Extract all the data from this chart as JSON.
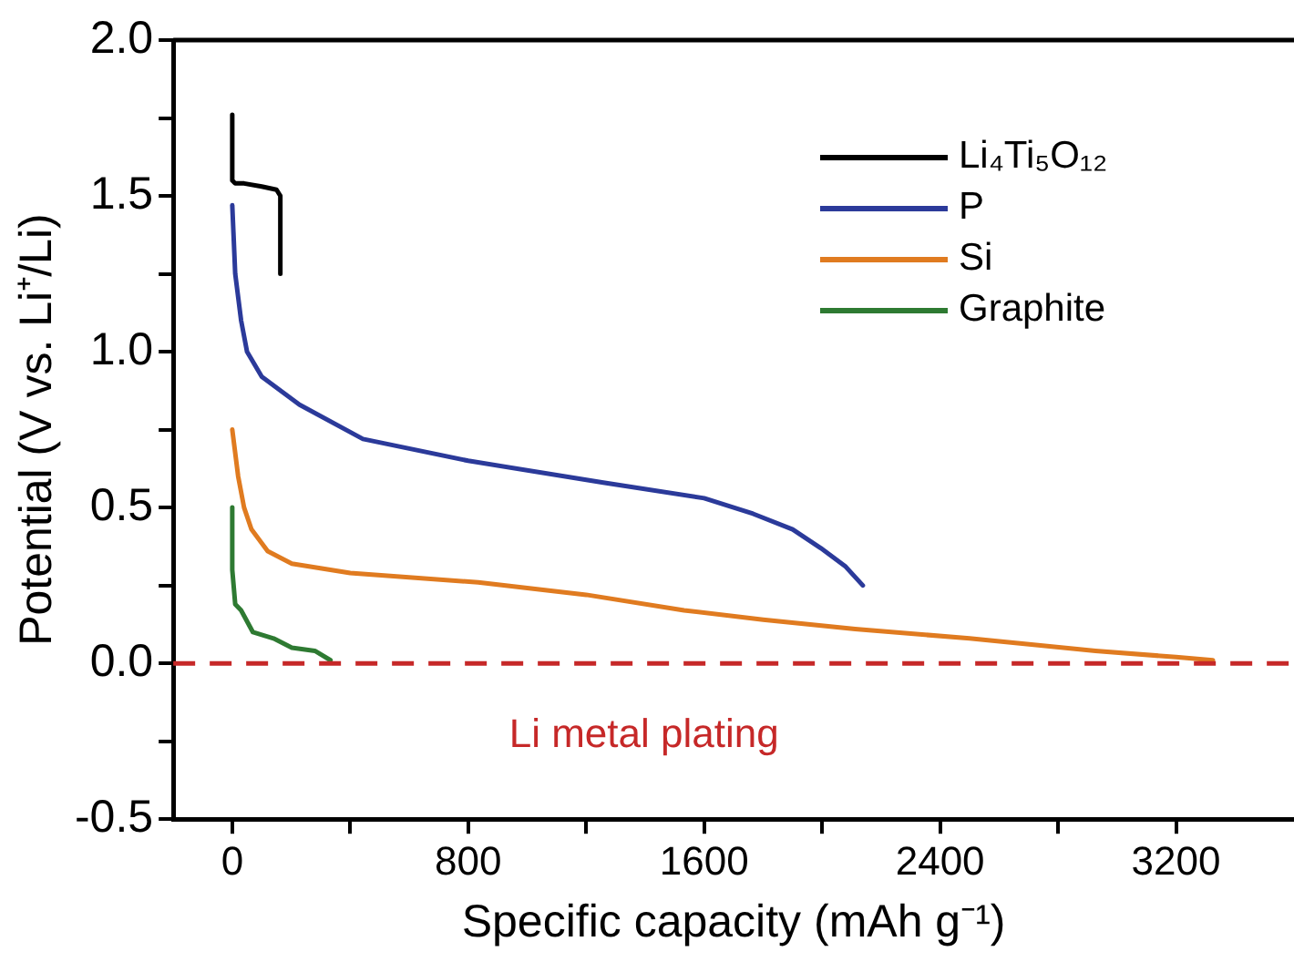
{
  "chart_data": {
    "type": "line",
    "xlabel": "Specific capacity (mAh g⁻¹)",
    "ylabel": "Potential (V vs. Li⁺/Li)",
    "xlim": [
      -200,
      3600
    ],
    "xticks": [
      0,
      {
        "value": 400,
        "label": null
      },
      800,
      {
        "value": 1200,
        "label": null
      },
      1600,
      {
        "value": 2000,
        "label": null
      },
      2400,
      {
        "value": 2800,
        "label": null
      },
      3200
    ],
    "ylim": [
      -0.5,
      2.0
    ],
    "yticks": [
      -0.5,
      {
        "value": -0.25,
        "label": null
      },
      {
        "value": 0,
        "label": "0.0"
      },
      {
        "value": 0.25,
        "label": null
      },
      0.5,
      {
        "value": 0.75,
        "label": null
      },
      {
        "value": 1,
        "label": "1.0"
      },
      {
        "value": 1.25,
        "label": null
      },
      1.5,
      {
        "value": 1.75,
        "label": null
      },
      {
        "value": 2,
        "label": "2.0"
      }
    ],
    "series": [
      {
        "name": "Li₄Ti₅O₁₂",
        "color": "#000000",
        "x": [
          0,
          0,
          10,
          40,
          100,
          150,
          163,
          163
        ],
        "values": [
          1.76,
          1.55,
          1.54,
          1.54,
          1.53,
          1.52,
          1.5,
          1.25
        ]
      },
      {
        "name": "P",
        "color": "#2b3a9a",
        "x": [
          0,
          10,
          30,
          50,
          100,
          228,
          443,
          800,
          1258,
          1600,
          1766,
          1900,
          1995,
          2080,
          2138
        ],
        "values": [
          1.47,
          1.25,
          1.1,
          1.0,
          0.92,
          0.83,
          0.72,
          0.65,
          0.58,
          0.53,
          0.48,
          0.43,
          0.37,
          0.31,
          0.25
        ]
      },
      {
        "name": "Si",
        "color": "#e07b20",
        "x": [
          0,
          20,
          40,
          65,
          120,
          202,
          400,
          834,
          1200,
          1532,
          1800,
          2112,
          2500,
          2927,
          3200,
          3325
        ],
        "values": [
          0.75,
          0.6,
          0.5,
          0.43,
          0.36,
          0.32,
          0.29,
          0.26,
          0.22,
          0.17,
          0.14,
          0.11,
          0.08,
          0.04,
          0.02,
          0.01
        ]
      },
      {
        "name": "Graphite",
        "color": "#2e7a32",
        "x": [
          0,
          0,
          10,
          30,
          70,
          140,
          202,
          280,
          333
        ],
        "values": [
          0.5,
          0.3,
          0.19,
          0.17,
          0.1,
          0.08,
          0.05,
          0.04,
          0.01
        ]
      }
    ],
    "ref_lines": [
      {
        "axis": "y",
        "value": 0.0,
        "label": "Li metal plating",
        "color": "#c62828",
        "line_style": "dashed"
      }
    ],
    "legend": "top right",
    "grid": false,
    "marker": "none",
    "line_style": "solid"
  }
}
